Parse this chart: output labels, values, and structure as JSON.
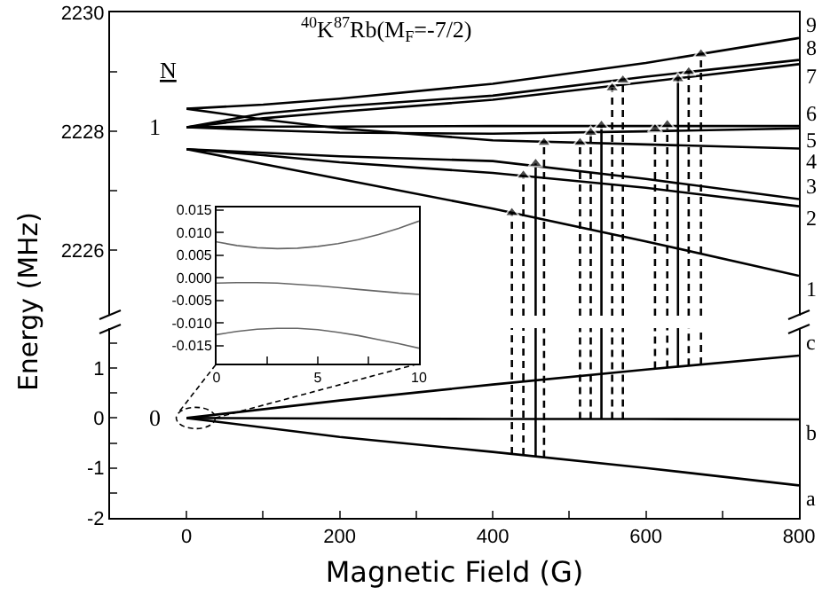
{
  "chart_data": [
    {
      "type": "line",
      "title": "$^{40}$K$^{87}$Rb(M$_{F}$=-7/2)",
      "ylabel": "Energy (MHz)",
      "x": [
        0,
        100,
        200,
        400,
        600,
        800
      ],
      "xlim": [
        -100,
        800
      ],
      "ylim": [
        2224.9,
        2230
      ],
      "yticks": [
        2226,
        {
          "value": 2227,
          "label": null
        },
        2228,
        {
          "value": 2229,
          "label": null
        },
        2230
      ],
      "tick_labels": "y",
      "annotations": [
        "N",
        {
          "text": "1",
          "x": 0,
          "y": 2228.07
        }
      ],
      "series": [
        {
          "name": "1",
          "color": "#000000",
          "values": [
            2227.7,
            2227.45,
            2227.2,
            2226.7,
            2226.15,
            2225.57
          ]
        },
        {
          "name": "2",
          "color": "#000000",
          "values": [
            2227.7,
            2227.6,
            2227.48,
            2227.3,
            2227.05,
            2226.74
          ]
        },
        {
          "name": "3",
          "color": "#000000",
          "values": [
            2227.7,
            2227.64,
            2227.58,
            2227.5,
            2227.2,
            2226.86
          ]
        },
        {
          "name": "4",
          "color": "#000000",
          "values": [
            2228.38,
            2228.2,
            2228.05,
            2227.85,
            2227.78,
            2227.71
          ]
        },
        {
          "name": "5",
          "color": "#000000",
          "values": [
            2228.07,
            2228.02,
            2227.98,
            2227.96,
            2228.0,
            2228.05
          ]
        },
        {
          "name": "6",
          "color": "#000000",
          "values": [
            2228.07,
            2228.08,
            2228.08,
            2228.09,
            2228.09,
            2228.09
          ]
        },
        {
          "name": "7",
          "color": "#000000",
          "values": [
            2228.07,
            2228.22,
            2228.33,
            2228.53,
            2228.83,
            2229.13
          ]
        },
        {
          "name": "8",
          "color": "#000000",
          "values": [
            2228.07,
            2228.3,
            2228.42,
            2228.6,
            2228.92,
            2229.2
          ]
        },
        {
          "name": "9",
          "color": "#000000",
          "values": [
            2228.38,
            2228.45,
            2228.55,
            2228.8,
            2229.15,
            2229.57
          ]
        },
        {
          "color": "#000000",
          "x": [
            425,
            425
          ],
          "values": [
            2224.9,
            2226.63
          ],
          "line_style": "dashed",
          "marker": "triangle"
        },
        {
          "color": "#000000",
          "x": [
            440,
            440
          ],
          "values": [
            2224.9,
            2227.26
          ],
          "line_style": "dashed",
          "marker": "triangle"
        },
        {
          "color": "#000000",
          "x": [
            456,
            456
          ],
          "values": [
            2224.9,
            2227.46
          ],
          "line_style": "solid",
          "marker": "triangle"
        },
        {
          "color": "#000000",
          "x": [
            467,
            467
          ],
          "values": [
            2224.9,
            2227.81
          ],
          "line_style": "dashed",
          "marker": "triangle"
        },
        {
          "color": "#000000",
          "x": [
            514,
            514
          ],
          "values": [
            2224.9,
            2227.81
          ],
          "line_style": "dashed",
          "marker": "triangle"
        },
        {
          "color": "#000000",
          "x": [
            528,
            528
          ],
          "values": [
            2224.9,
            2227.98
          ],
          "line_style": "dashed",
          "marker": "triangle"
        },
        {
          "color": "#000000",
          "x": [
            542,
            542
          ],
          "values": [
            2224.9,
            2228.1
          ],
          "line_style": "solid",
          "marker": "triangle"
        },
        {
          "color": "#000000",
          "x": [
            556,
            556
          ],
          "values": [
            2224.9,
            2228.73
          ],
          "line_style": "dashed",
          "marker": "triangle"
        },
        {
          "color": "#000000",
          "x": [
            570,
            570
          ],
          "values": [
            2224.9,
            2228.86
          ],
          "line_style": "dashed",
          "marker": "triangle"
        },
        {
          "color": "#000000",
          "x": [
            612,
            612
          ],
          "values": [
            2224.9,
            2228.04
          ],
          "line_style": "dashed",
          "marker": "triangle"
        },
        {
          "color": "#000000",
          "x": [
            628,
            628
          ],
          "values": [
            2224.9,
            2228.11
          ],
          "line_style": "dashed",
          "marker": "triangle"
        },
        {
          "color": "#000000",
          "x": [
            642,
            642
          ],
          "values": [
            2224.9,
            2228.88
          ],
          "line_style": "solid",
          "marker": "triangle"
        },
        {
          "color": "#000000",
          "x": [
            656,
            656
          ],
          "values": [
            2224.9,
            2229.0
          ],
          "line_style": "dashed",
          "marker": "triangle"
        },
        {
          "color": "#000000",
          "x": [
            672,
            672
          ],
          "values": [
            2224.9,
            2229.3
          ],
          "line_style": "dashed",
          "marker": "triangle"
        }
      ]
    },
    {
      "type": "line",
      "xlabel": "Magnetic Field (G)",
      "x": [
        0,
        200,
        400,
        600,
        800
      ],
      "xlim": [
        -100,
        800
      ],
      "ylim": [
        -2,
        1.8
      ],
      "xticks": [
        0,
        {
          "value": 100,
          "label": null
        },
        200,
        {
          "value": 300,
          "label": null
        },
        400,
        {
          "value": 500,
          "label": null
        },
        600,
        {
          "value": 700,
          "label": null
        },
        800
      ],
      "yticks": [
        -2,
        {
          "value": -1.5,
          "label": null
        },
        -1,
        {
          "value": -0.5,
          "label": null
        },
        0,
        {
          "value": 0.5,
          "label": null
        },
        1,
        {
          "value": 1.5,
          "label": null
        }
      ],
      "annotations": [
        {
          "text": "0",
          "x": 0,
          "y": 0
        }
      ],
      "series": [
        {
          "name": "a",
          "color": "#000000",
          "values": [
            0,
            -0.38,
            -0.68,
            -1.0,
            -1.35
          ]
        },
        {
          "name": "b",
          "color": "#000000",
          "values": [
            0,
            -0.01,
            -0.02,
            -0.02,
            -0.03
          ]
        },
        {
          "name": "c",
          "color": "#000000",
          "values": [
            0,
            0.35,
            0.67,
            0.97,
            1.25
          ]
        },
        {
          "color": "#000000",
          "x": [
            425,
            425
          ],
          "values": [
            -0.72,
            1.8
          ],
          "line_style": "dashed"
        },
        {
          "color": "#000000",
          "x": [
            440,
            440
          ],
          "values": [
            -0.74,
            1.8
          ],
          "line_style": "dashed"
        },
        {
          "color": "#000000",
          "x": [
            456,
            456
          ],
          "values": [
            -0.77,
            1.8
          ],
          "line_style": "solid"
        },
        {
          "color": "#000000",
          "x": [
            467,
            467
          ],
          "values": [
            -0.79,
            1.8
          ],
          "line_style": "dashed"
        },
        {
          "color": "#000000",
          "x": [
            514,
            514
          ],
          "values": [
            -0.02,
            1.8
          ],
          "line_style": "dashed"
        },
        {
          "color": "#000000",
          "x": [
            528,
            528
          ],
          "values": [
            -0.02,
            1.8
          ],
          "line_style": "dashed"
        },
        {
          "color": "#000000",
          "x": [
            542,
            542
          ],
          "values": [
            -0.02,
            1.8
          ],
          "line_style": "solid"
        },
        {
          "color": "#000000",
          "x": [
            556,
            556
          ],
          "values": [
            -0.02,
            1.8
          ],
          "line_style": "dashed"
        },
        {
          "color": "#000000",
          "x": [
            570,
            570
          ],
          "values": [
            -0.02,
            1.8
          ],
          "line_style": "dashed"
        },
        {
          "color": "#000000",
          "x": [
            612,
            612
          ],
          "values": [
            0.99,
            1.8
          ],
          "line_style": "dashed"
        },
        {
          "color": "#000000",
          "x": [
            628,
            628
          ],
          "values": [
            1.01,
            1.8
          ],
          "line_style": "dashed"
        },
        {
          "color": "#000000",
          "x": [
            642,
            642
          ],
          "values": [
            1.03,
            1.8
          ],
          "line_style": "solid"
        },
        {
          "color": "#000000",
          "x": [
            656,
            656
          ],
          "values": [
            1.05,
            1.8
          ],
          "line_style": "dashed"
        },
        {
          "color": "#000000",
          "x": [
            672,
            672
          ],
          "values": [
            1.07,
            1.8
          ],
          "line_style": "dashed"
        }
      ]
    },
    {
      "type": "line",
      "x": [
        0,
        1,
        2,
        3,
        4,
        5,
        6,
        7,
        8,
        9,
        10
      ],
      "xlim": [
        0,
        10
      ],
      "ylim": [
        -0.019,
        0.0155
      ],
      "xticks": [
        0,
        {
          "value": 2.5,
          "label": null
        },
        5,
        {
          "value": 7.5,
          "label": null
        },
        10
      ],
      "yticks": [
        -0.015,
        {
          "value": -0.01,
          "label": "-0.010"
        },
        -0.005,
        {
          "value": 0,
          "label": "0.000"
        },
        0.005,
        {
          "value": 0.01,
          "label": "0.010"
        },
        0.015
      ],
      "series": [
        {
          "color": "#666666",
          "values": [
            0.0079,
            0.0071,
            0.0066,
            0.0064,
            0.0065,
            0.0069,
            0.0075,
            0.0084,
            0.0095,
            0.0109,
            0.0125
          ]
        },
        {
          "color": "#666666",
          "values": [
            -0.0012,
            -0.0011,
            -0.0011,
            -0.0012,
            -0.0015,
            -0.0018,
            -0.0022,
            -0.0026,
            -0.003,
            -0.0034,
            -0.0037
          ]
        },
        {
          "color": "#666666",
          "values": [
            -0.0126,
            -0.0119,
            -0.0114,
            -0.0112,
            -0.0112,
            -0.0115,
            -0.0121,
            -0.0128,
            -0.0137,
            -0.0146,
            -0.0156
          ]
        }
      ]
    }
  ]
}
